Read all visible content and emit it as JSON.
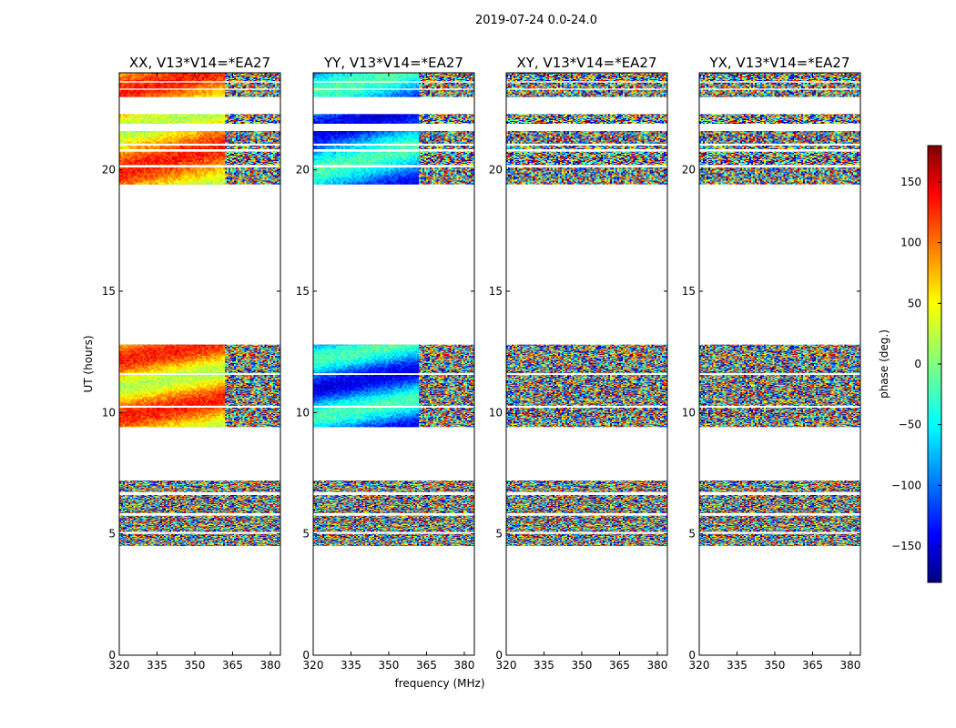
{
  "suptitle": "2019-07-24 0.0-24.0",
  "chart_data": {
    "type": "heatmap",
    "xlabel": "frequency (MHz)",
    "ylabel": "UT (hours)",
    "xlim": [
      320,
      384
    ],
    "ylim": [
      0,
      24
    ],
    "xticks": [
      "320",
      "335",
      "350",
      "365",
      "380"
    ],
    "yticks": [
      "0",
      "5",
      "10",
      "15",
      "20"
    ],
    "colorbar": {
      "label": "phase (deg.)",
      "range": [
        -180,
        180
      ],
      "ticks": [
        "150",
        "100",
        "50",
        "0",
        "−50",
        "−100",
        "−150"
      ],
      "colormap": "jet"
    },
    "data_hour_blocks": [
      [
        4.5,
        7.2
      ],
      [
        9.4,
        12.8
      ],
      [
        19.4,
        24.0
      ]
    ],
    "panels": [
      {
        "title": "XX, V13*V14=*EA27",
        "coherent_hours": [
          [
            9.4,
            12.8
          ],
          [
            19.4,
            24.0
          ]
        ],
        "coherent_freq_max": 362
      },
      {
        "title": "YY, V13*V14=*EA27",
        "coherent_hours": [
          [
            9.4,
            12.8
          ],
          [
            19.4,
            24.0
          ]
        ],
        "coherent_freq_max": 362
      },
      {
        "title": "XY, V13*V14=*EA27",
        "coherent_hours": [],
        "coherent_freq_max": 0
      },
      {
        "title": "YX, V13*V14=*EA27",
        "coherent_hours": [],
        "coherent_freq_max": 0
      }
    ]
  }
}
